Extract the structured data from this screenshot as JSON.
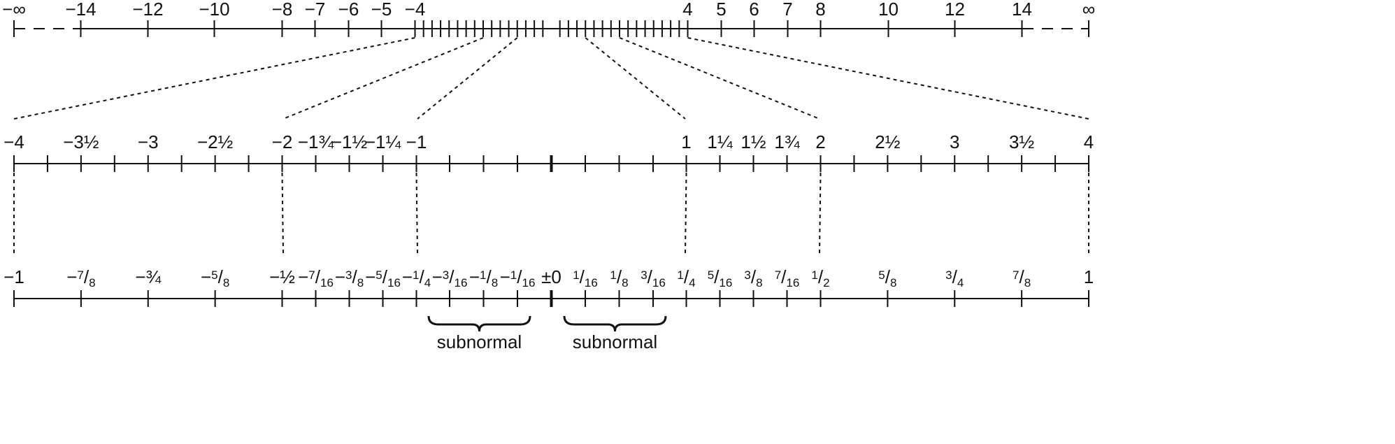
{
  "colors": {
    "ink": "#111111",
    "background": "#ffffff"
  },
  "rows": [
    {
      "name": "top",
      "labels": [
        {
          "text": "−∞",
          "v": -20
        },
        {
          "text": "−14",
          "v": -14
        },
        {
          "text": "−12",
          "v": -12
        },
        {
          "text": "−10",
          "v": -10
        },
        {
          "text": "−8",
          "v": -8
        },
        {
          "text": "−7",
          "v": -7
        },
        {
          "text": "−6",
          "v": -6
        },
        {
          "text": "−5",
          "v": -5
        },
        {
          "text": "−4",
          "v": -4
        },
        {
          "text": "4",
          "v": 4
        },
        {
          "text": "5",
          "v": 5
        },
        {
          "text": "6",
          "v": 6
        },
        {
          "text": "7",
          "v": 7
        },
        {
          "text": "8",
          "v": 8
        },
        {
          "text": "10",
          "v": 10
        },
        {
          "text": "12",
          "v": 12
        },
        {
          "text": "14",
          "v": 14
        },
        {
          "text": "∞",
          "v": 20
        }
      ]
    },
    {
      "name": "middle",
      "labels": [
        {
          "text": "−4",
          "v": -4
        },
        {
          "text": "−3½",
          "v": -3.5
        },
        {
          "text": "−3",
          "v": -3
        },
        {
          "text": "−2½",
          "v": -2.5
        },
        {
          "text": "−2",
          "v": -2
        },
        {
          "text": "−1¾",
          "v": -1.75
        },
        {
          "text": "−1½",
          "v": -1.5
        },
        {
          "text": "−1¼",
          "v": -1.25
        },
        {
          "text": "−1",
          "v": -1
        },
        {
          "text": "1",
          "v": 1
        },
        {
          "text": "1¼",
          "v": 1.25
        },
        {
          "text": "1½",
          "v": 1.5
        },
        {
          "text": "1¾",
          "v": 1.75
        },
        {
          "text": "2",
          "v": 2
        },
        {
          "text": "2½",
          "v": 2.5
        },
        {
          "text": "3",
          "v": 3
        },
        {
          "text": "3½",
          "v": 3.5
        },
        {
          "text": "4",
          "v": 4
        }
      ]
    },
    {
      "name": "bottom",
      "labels": [
        {
          "text": "−1",
          "v": -1
        },
        {
          "text": "−7/8",
          "v": -0.875
        },
        {
          "text": "−¾",
          "v": -0.75
        },
        {
          "text": "−5/8",
          "v": -0.625
        },
        {
          "text": "−½",
          "v": -0.5
        },
        {
          "text": "−7/16",
          "v": -0.4375
        },
        {
          "text": "−3/8",
          "v": -0.375
        },
        {
          "text": "−5/16",
          "v": -0.3125
        },
        {
          "text": "−1/4",
          "v": -0.25
        },
        {
          "text": "−3/16",
          "v": -0.1875
        },
        {
          "text": "−1/8",
          "v": -0.125
        },
        {
          "text": "−1/16",
          "v": -0.0625
        },
        {
          "text": "±0",
          "v": 0
        },
        {
          "text": "1/16",
          "v": 0.0625
        },
        {
          "text": "1/8",
          "v": 0.125
        },
        {
          "text": "3/16",
          "v": 0.1875
        },
        {
          "text": "1/4",
          "v": 0.25
        },
        {
          "text": "5/16",
          "v": 0.3125
        },
        {
          "text": "3/8",
          "v": 0.375
        },
        {
          "text": "7/16",
          "v": 0.4375
        },
        {
          "text": "1/2",
          "v": 0.5
        },
        {
          "text": "5/8",
          "v": 0.625
        },
        {
          "text": "3/4",
          "v": 0.75
        },
        {
          "text": "7/8",
          "v": 0.875
        },
        {
          "text": "1",
          "v": 1
        }
      ]
    }
  ],
  "brackets": [
    {
      "label": "subnormal",
      "from": -0.1875,
      "to": -0.0625
    },
    {
      "label": "subnormal",
      "from": 0.0625,
      "to": 0.1875
    }
  ]
}
